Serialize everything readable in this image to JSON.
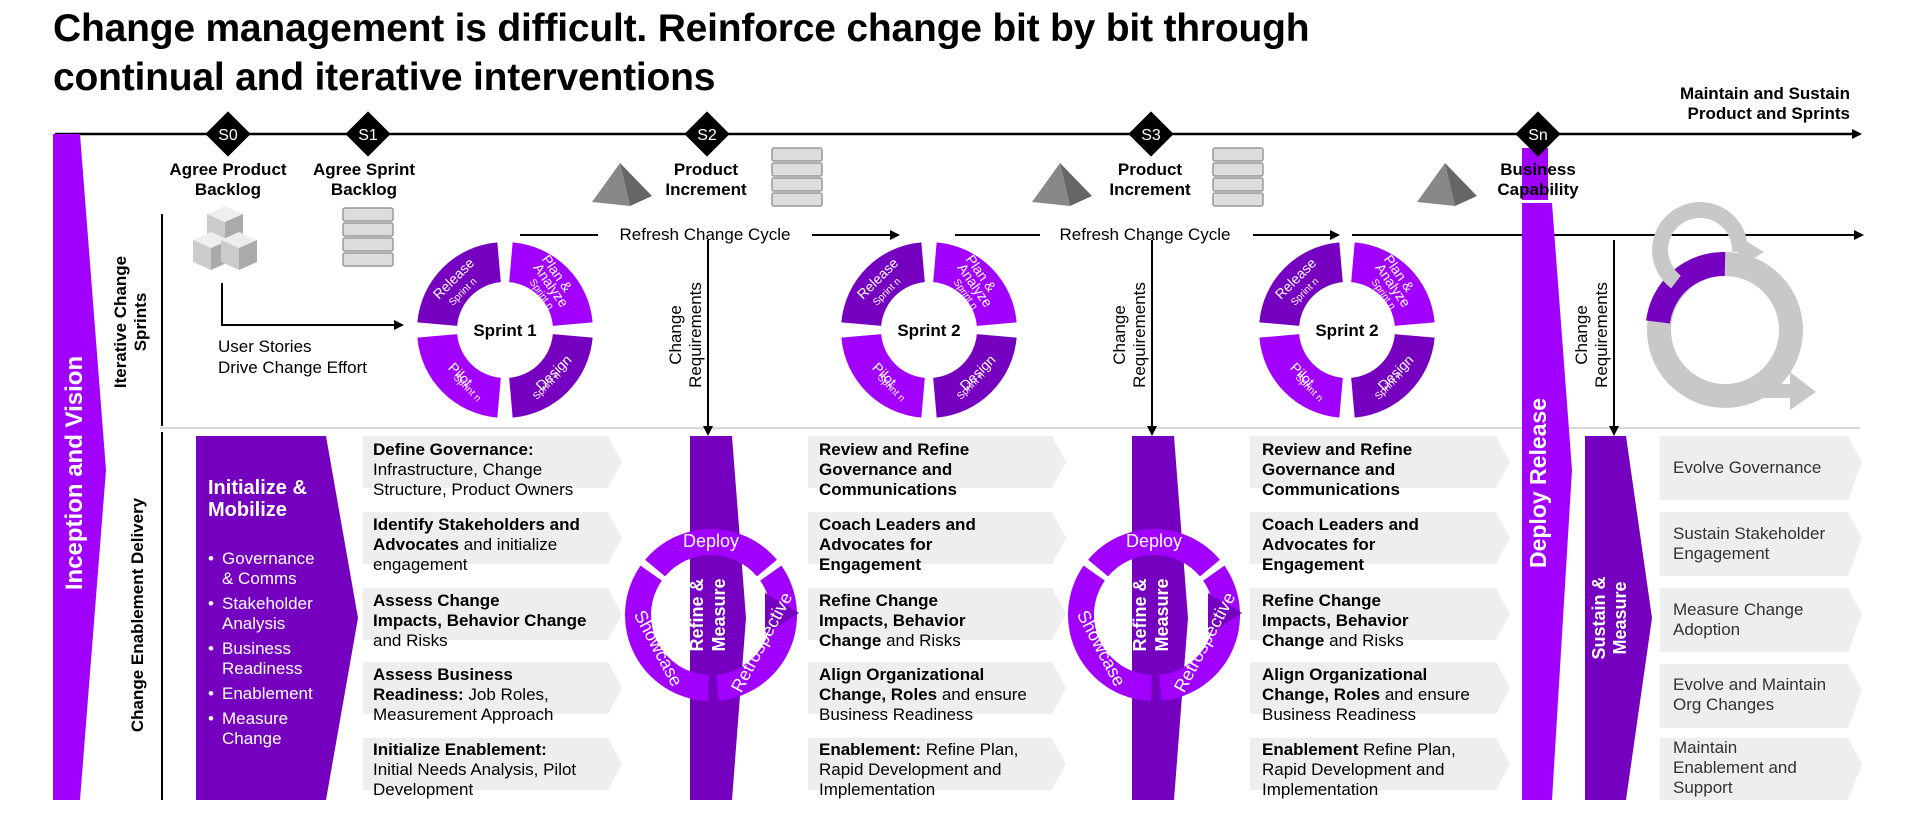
{
  "title": {
    "line1": "Change management is difficult. Reinforce change bit by bit through",
    "line2": "continual and iterative interventions"
  },
  "top_right": {
    "line1": "Maintain and Sustain",
    "line2": "Product and Sprints"
  },
  "milestones": [
    "S0",
    "S1",
    "S2",
    "S3",
    "Sn"
  ],
  "milestone_labels": {
    "s0": {
      "l1": "Agree Product",
      "l2": "Backlog"
    },
    "s1": {
      "l1": "Agree Sprint",
      "l2": "Backlog"
    },
    "s2": {
      "l1": "Product",
      "l2": "Increment"
    },
    "s3": {
      "l1": "Product",
      "l2": "Increment"
    },
    "sn": {
      "l1": "Business",
      "l2": "Capability"
    }
  },
  "left_band": "Inception and Vision",
  "row_labels": {
    "top_l1": "Iterative Change",
    "top_l2": "Sprints",
    "bottom": "Change Enablement Delivery"
  },
  "refresh_label": "Refresh Change Cycle",
  "change_req": {
    "l1": "Change",
    "l2": "Requirements"
  },
  "user_stories": {
    "l1": "User Stories",
    "l2": "Drive Change Effort"
  },
  "sprints": [
    {
      "title": "Sprint 1",
      "seg": {
        "release": "Release",
        "plan": "Plan &",
        "analyze": "Analyze",
        "design": "Design",
        "pilot": "Pilot",
        "sub": "Sprint n"
      }
    },
    {
      "title": "Sprint 2",
      "seg": {
        "release": "Release",
        "plan": "Plan &",
        "analyze": "Analyze",
        "design": "Design",
        "pilot": "Pilot",
        "sub": "Sprint n"
      }
    },
    {
      "title": "Sprint 2",
      "seg": {
        "release": "Release",
        "plan": "Plan &",
        "analyze": "Analyze",
        "design": "Design",
        "pilot": "Pilot",
        "sub": "Sprint n"
      }
    }
  ],
  "init": {
    "title_l1": "Initialize &",
    "title_l2": "Mobilize",
    "bullets": [
      {
        "l1": "Governance",
        "l2": "& Comms"
      },
      {
        "l1": "Stakeholder",
        "l2": "Analysis"
      },
      {
        "l1": "Business",
        "l2": "Readiness"
      },
      {
        "l1": "Enablement",
        "l2": ""
      },
      {
        "l1": "Measure",
        "l2": "Change"
      }
    ]
  },
  "col1": [
    {
      "b1": "Define Governance:",
      "t1": "",
      "l2": "Infrastructure, Change",
      "l3": "Structure, Product Owners"
    },
    {
      "b1": "Identify Stakeholders and",
      "b2": "Advocates",
      "t2": " and initialize",
      "l3": "engagement"
    },
    {
      "b1": "Assess Change",
      "b2": "Impacts, Behavior Change",
      "l3b": "",
      "l3": "and Risks"
    },
    {
      "b1": "Assess Business",
      "b2": "Readiness:",
      "t2": " Job Roles,",
      "l3": "Measurement Approach"
    },
    {
      "b1": "Initialize Enablement:",
      "l2": "Initial Needs Analysis, Pilot",
      "l3": "Development"
    }
  ],
  "mid_cols": [
    {
      "r1": {
        "b1": "Review and Refine",
        "b2": "Governance and",
        "b3": "Communications"
      },
      "r2": {
        "b1": "Coach Leaders and",
        "b2": "Advocates for",
        "b3": "Engagement"
      },
      "r3": {
        "b1": "Refine Change",
        "b2": "Impacts, Behavior",
        "b3": "Change",
        "t3": " and Risks"
      },
      "r4": {
        "b1": "Align Organizational",
        "b2": "Change, Roles",
        "t2": " and ensure",
        "l3": "Business Readiness"
      },
      "r5": {
        "b1": "Enablement:",
        "t1": " Refine Plan,",
        "l2": "Rapid Development and",
        "l3": "Implementation"
      }
    },
    {
      "r1": {
        "b1": "Review and Refine",
        "b2": "Governance and",
        "b3": "Communications"
      },
      "r2": {
        "b1": "Coach Leaders and",
        "b2": "Advocates for",
        "b3": "Engagement"
      },
      "r3": {
        "b1": "Refine Change",
        "b2": "Impacts, Behavior",
        "b3": "Change",
        "t3": " and Risks"
      },
      "r4": {
        "b1": "Align Organizational",
        "b2": "Change, Roles",
        "t2": " and ensure",
        "l3": "Business Readiness"
      },
      "r5": {
        "b1": "Enablement",
        "t1": " Refine Plan,",
        "l2": "Rapid Development and",
        "l3": "Implementation"
      }
    }
  ],
  "refine_ring": {
    "deploy": "Deploy",
    "showcase": "Showcase",
    "retro": "Retrospective",
    "center_l1": "Refine &",
    "center_l2": "Measure"
  },
  "deploy_release": "Deploy Release",
  "sustain": {
    "l1": "Sustain &",
    "l2": "Measure"
  },
  "last_col": [
    {
      "l1": "Evolve Governance",
      "l2": ""
    },
    {
      "l1": "Sustain Stakeholder",
      "l2": "Engagement"
    },
    {
      "l1": "Measure Change",
      "l2": "Adoption"
    },
    {
      "l1": "Evolve and Maintain",
      "l2": "Org Changes"
    },
    {
      "l1": "Maintain",
      "l2": "Enablement and",
      "l3": "Support"
    }
  ],
  "colors": {
    "purple": "#7500C0",
    "purple_light": "#A100FF",
    "grey_panel": "#EEEEEE",
    "grey_icon": "#A6A6A6"
  }
}
